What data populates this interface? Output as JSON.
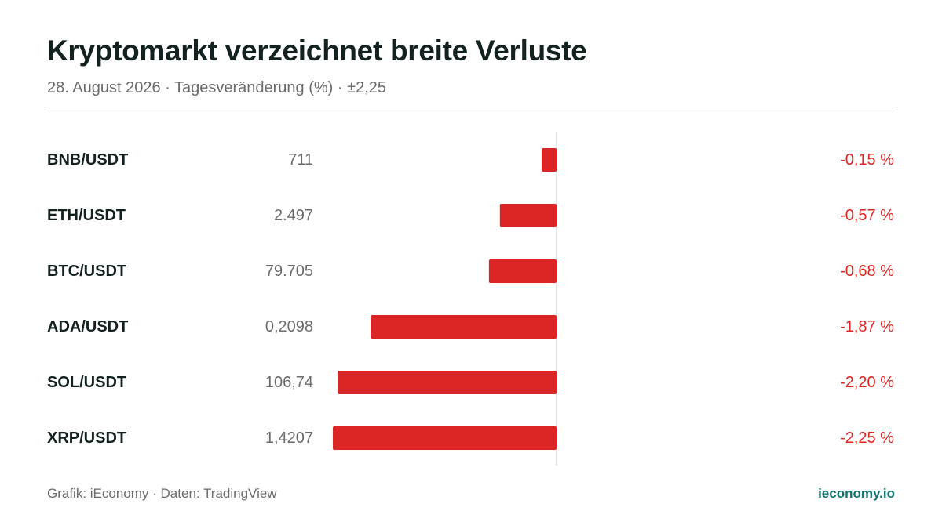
{
  "header": {
    "title": "Kryptomarkt verzeichnet breite Verluste",
    "subtitle": "28. August 2026 · Tagesveränderung (%) · ±2,25"
  },
  "footer": {
    "credit": "Grafik: iEconomy · Daten: TradingView",
    "brand": "ieconomy.io"
  },
  "colors": {
    "negative": "#dc2626",
    "label": "#132220",
    "price": "#6b6b6b",
    "axis": "#d9d9d9",
    "brand": "#0f766e"
  },
  "chart_data": {
    "type": "bar",
    "orientation": "horizontal",
    "categories": [
      "BNB/USDT",
      "ETH/USDT",
      "BTC/USDT",
      "ADA/USDT",
      "SOL/USDT",
      "XRP/USDT"
    ],
    "prices": [
      "711",
      "2.497",
      "79.705",
      "0,2098",
      "106,74",
      "1,4207"
    ],
    "values": [
      -0.15,
      -0.57,
      -0.68,
      -1.87,
      -2.2,
      -2.25
    ],
    "value_labels": [
      "-0,15 %",
      "-0,57 %",
      "-0,68 %",
      "-1,87 %",
      "-2,20 %",
      "-2,25 %"
    ],
    "xlim": [
      -2.25,
      2.25
    ],
    "title": "Kryptomarkt verzeichnet breite Verluste",
    "subtitle": "28. August 2026 · Tagesveränderung (%) · ±2,25",
    "grid": false,
    "legend": "none"
  }
}
